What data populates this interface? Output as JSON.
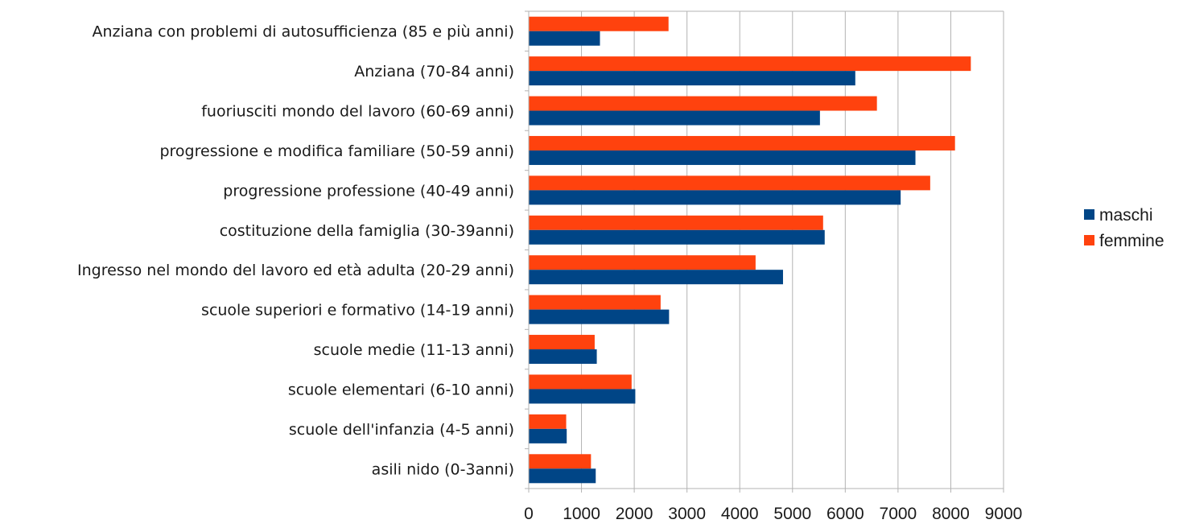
{
  "chart_data": {
    "type": "bar",
    "orientation": "horizontal",
    "title": "",
    "xlabel": "",
    "ylabel": "",
    "xlim": [
      0,
      9000
    ],
    "ticks": [
      0,
      1000,
      2000,
      3000,
      4000,
      5000,
      6000,
      7000,
      8000,
      9000
    ],
    "tick_labels": [
      "0",
      "1000",
      "2000",
      "3000",
      "4000",
      "5000",
      "6000",
      "7000",
      "8000",
      "9000"
    ],
    "grid": true,
    "legend_position": "right",
    "categories": [
      "Anziana con problemi di autosufficienza (85 e più anni)",
      "Anziana (70-84 anni)",
      "fuoriusciti mondo del lavoro (60-69 anni)",
      "progressione e modifica familiare (50-59 anni)",
      "progressione professione (40-49 anni)",
      "costituzione della famiglia (30-39anni)",
      "Ingresso nel mondo del lavoro ed età adulta (20-29 anni)",
      "scuole superiori e formativo (14-19 anni)",
      "scuole medie (11-13 anni)",
      "scuole elementari (6-10 anni)",
      "scuole dell'infanzia (4-5 anni)",
      "asili nido (0-3anni)"
    ],
    "series": [
      {
        "name": "femmine",
        "color": "#ff420e",
        "values": [
          2650,
          8380,
          6600,
          8080,
          7610,
          5580,
          4300,
          2500,
          1250,
          1950,
          710,
          1180
        ]
      },
      {
        "name": "maschi",
        "color": "#004586",
        "values": [
          1350,
          6190,
          5520,
          7330,
          7050,
          5610,
          4820,
          2660,
          1290,
          2020,
          720,
          1270
        ]
      }
    ],
    "legend": [
      {
        "name": "maschi",
        "color": "#004586"
      },
      {
        "name": "femmine",
        "color": "#ff420e"
      }
    ]
  }
}
